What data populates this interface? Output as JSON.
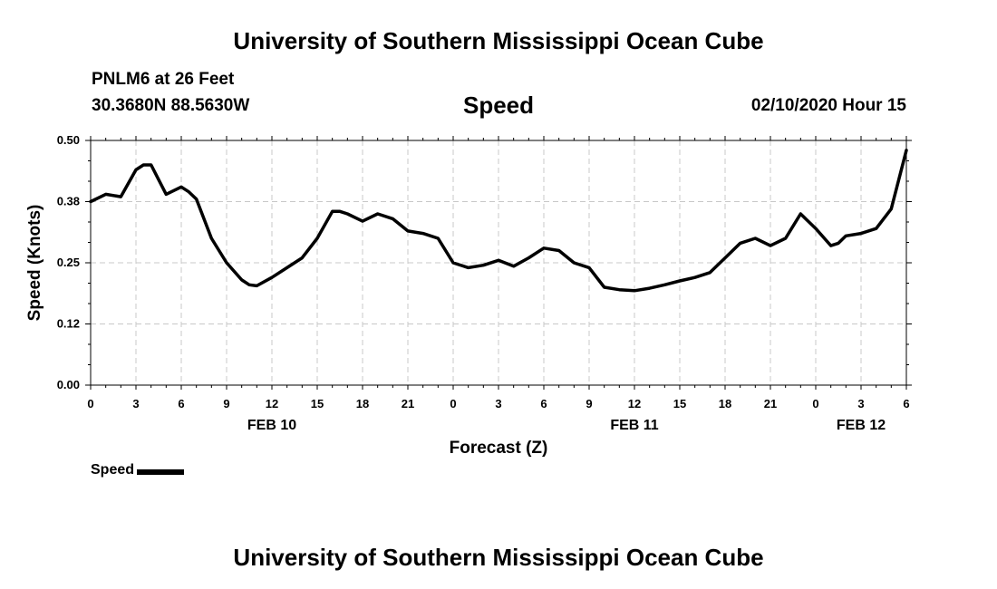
{
  "header": {
    "title": "University of Southern Mississippi Ocean Cube",
    "station": "PNLM6 at 26 Feet",
    "coordinates": "30.3680N 88.5630W",
    "variable": "Speed",
    "datetime": "02/10/2020 Hour 15"
  },
  "footer": {
    "title": "University of Southern Mississippi Ocean Cube"
  },
  "legend": {
    "label": "Speed",
    "color": "#000000"
  },
  "chart_data": {
    "type": "line",
    "title": "Speed",
    "xlabel": "Forecast (Z)",
    "ylabel": "Speed (Knots)",
    "x_ticks": [
      "0",
      "3",
      "6",
      "9",
      "12",
      "15",
      "18",
      "21",
      "0",
      "3",
      "6",
      "9",
      "12",
      "15",
      "18",
      "21",
      "0",
      "3",
      "6"
    ],
    "date_labels": [
      {
        "label": "FEB 10",
        "at_tick": 4
      },
      {
        "label": "FEB 11",
        "at_tick": 12
      },
      {
        "label": "FEB 12",
        "at_tick": 17
      }
    ],
    "y_ticks": [
      "0.00",
      "0.12",
      "0.25",
      "0.38",
      "0.50"
    ],
    "ylim": [
      0,
      0.5
    ],
    "xlim": [
      0,
      54
    ],
    "grid": true,
    "series": [
      {
        "name": "Speed",
        "color": "#000000",
        "x": [
          0,
          1,
          2,
          3,
          3.5,
          4,
          5,
          6,
          6.5,
          7,
          8,
          9,
          10,
          10.5,
          11,
          12,
          13,
          14,
          15,
          16,
          16.5,
          17,
          18,
          19,
          20,
          21,
          22,
          23,
          24,
          25,
          26,
          27,
          28,
          29,
          30,
          31,
          32,
          33,
          34,
          35,
          36,
          37,
          38,
          39,
          40,
          41,
          42,
          43,
          44,
          45,
          46,
          47,
          48,
          49,
          49.5,
          50,
          51,
          52,
          53,
          54
        ],
        "values": [
          0.375,
          0.39,
          0.385,
          0.44,
          0.45,
          0.45,
          0.39,
          0.405,
          0.395,
          0.38,
          0.3,
          0.25,
          0.215,
          0.205,
          0.203,
          0.22,
          0.24,
          0.26,
          0.3,
          0.355,
          0.355,
          0.35,
          0.335,
          0.35,
          0.34,
          0.315,
          0.31,
          0.3,
          0.25,
          0.24,
          0.245,
          0.255,
          0.243,
          0.26,
          0.28,
          0.275,
          0.25,
          0.24,
          0.2,
          0.195,
          0.193,
          0.198,
          0.205,
          0.213,
          0.22,
          0.23,
          0.26,
          0.29,
          0.3,
          0.285,
          0.3,
          0.35,
          0.32,
          0.285,
          0.29,
          0.305,
          0.31,
          0.32,
          0.36,
          0.48
        ]
      }
    ]
  }
}
